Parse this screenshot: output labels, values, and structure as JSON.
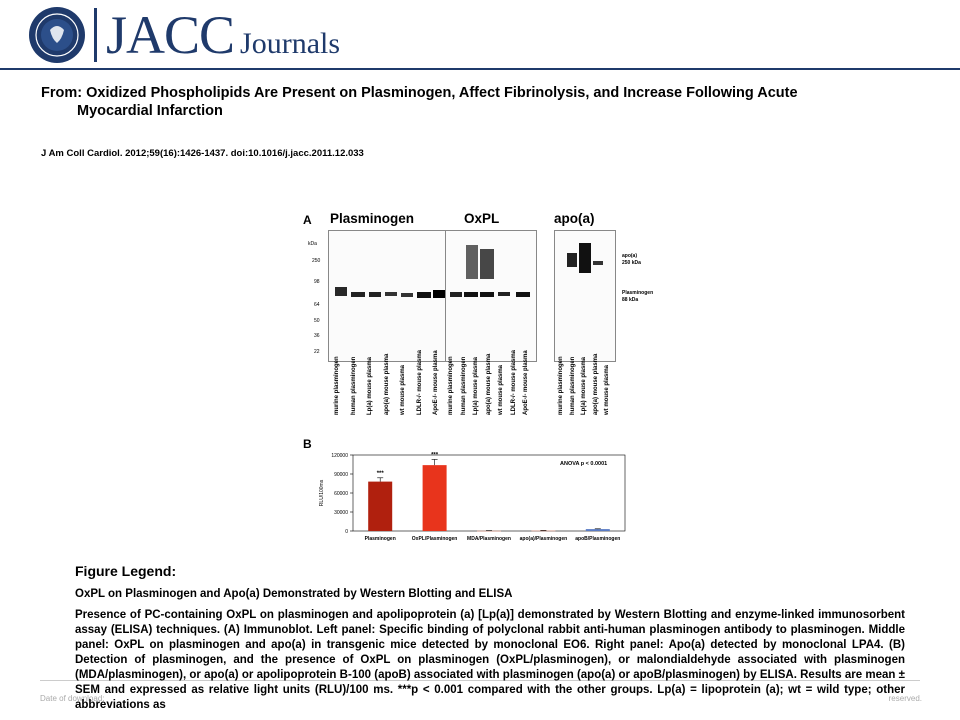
{
  "header": {
    "brand": "JACC",
    "brand_sub": "Journals",
    "seal_icon": "acc-seal-icon"
  },
  "article": {
    "title_line1": "From: Oxidized Phospholipids Are Present on Plasminogen, Affect Fibrinolysis, and Increase Following Acute",
    "title_line2": "Myocardial Infarction",
    "citation": "J Am Coll Cardiol. 2012;59(16):1426-1437. doi:10.1016/j.jacc.2011.12.033"
  },
  "figure": {
    "panel_a": "A",
    "panel_b": "B",
    "blot_titles": [
      "Plasminogen",
      "OxPL",
      "apo(a)"
    ],
    "kda_label": "kDa",
    "kda_ticks": [
      "250",
      "98",
      "64",
      "50",
      "36",
      "22"
    ],
    "side_labels": {
      "apoa_line1": "apo(a)",
      "apoa_line2": "250 kDa",
      "plg_line1": "Plasminogen",
      "plg_line2": "88 kDa"
    },
    "lanes_group1": [
      "murine plasminogen",
      "human plasminogen",
      "Lp(a) mouse plasma",
      "apo(a) mouse plasma",
      "wt mouse plasma",
      "LDLR-/- mouse plasma",
      "ApoE-/- mouse plasma"
    ],
    "lanes_group2": [
      "murine plasminogen",
      "human plasminogen",
      "Lp(a) mouse plasma",
      "apo(a) mouse plasma",
      "wt mouse plasma",
      "LDLR-/- mouse plasma",
      "ApoE-/- mouse plasma"
    ],
    "lanes_group3": [
      "murine plasminogen",
      "human plasminogen",
      "Lp(a) mouse plasma",
      "apo(a) mouse plasma",
      "wt mouse plasma"
    ]
  },
  "chart_data": {
    "type": "bar",
    "categories": [
      "Plasminogen",
      "OxPL/Plasminogen",
      "MDA/Plasminogen",
      "apo(a)/Plasminogen",
      "apoB/Plasminogen"
    ],
    "values": [
      78000,
      104000,
      500,
      800,
      3000
    ],
    "errors": [
      6000,
      9000,
      200,
      300,
      500
    ],
    "colors": [
      "#b0200e",
      "#e8341c",
      "#c89080",
      "#c89080",
      "#5a7cc4"
    ],
    "significance": [
      "***",
      "***",
      "",
      "",
      ""
    ],
    "ylabel": "RLU/100ms",
    "yticks": [
      "0",
      "30000",
      "60000",
      "90000",
      "120000"
    ],
    "ylim": [
      0,
      120000
    ],
    "annotation": "ANOVA   p < 0.0001"
  },
  "legend": {
    "heading": "Figure Legend:",
    "subtitle": "OxPL on Plasminogen and Apo(a) Demonstrated by Western Blotting and ELISA",
    "body": "Presence of PC-containing OxPL on plasminogen and apolipoprotein (a) [Lp(a)] demonstrated by Western Blotting and enzyme-linked immunosorbent assay (ELISA) techniques. (A) Immunoblot. Left panel: Specific binding of polyclonal rabbit anti-human plasminogen antibody to plasminogen. Middle panel: OxPL on plasminogen and apo(a) in transgenic mice detected by monoclonal EO6. Right panel: Apo(a) detected by monoclonal LPA4. (B) Detection of plasminogen, and the presence of OxPL on plasminogen (OxPL/plasminogen), or malondialdehyde associated with plasminogen (MDA/plasminogen), or apo(a) or apolipoprotein B-100 (apoB) associated with plasminogen (apo(a) or apoB/plasminogen) by ELISA. Results are mean ± SEM and expressed as relative light units (RLU)/100 ms. ***p < 0.001 compared with the other groups. Lp(a) = lipoprotein (a); wt = wild type; other abbreviations as"
  },
  "footer": {
    "left": "Date of download:",
    "right": "reserved."
  }
}
